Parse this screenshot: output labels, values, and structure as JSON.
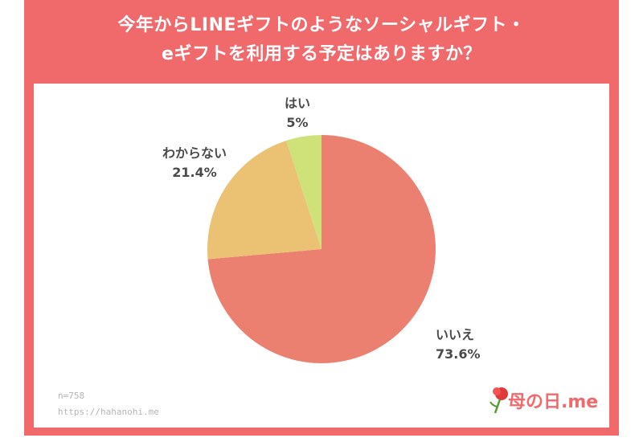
{
  "title_line1": "今年からLINEギフトのようなソーシャルギフト・",
  "title_line2": "eギフトを利用する予定はありますか？",
  "colors": {
    "frame": "#f06a6c",
    "yes": "#cfe27a",
    "no": "#ec8070",
    "unknown": "#ebc273"
  },
  "footer": {
    "sample": "n=758",
    "url": "https://hahanohi.me"
  },
  "logo": {
    "text": "母の日.me"
  },
  "chart_data": {
    "type": "pie",
    "start": "top",
    "direction": "clockwise",
    "slices": [
      {
        "label": "いいえ",
        "value": 73.6,
        "display": "73.6%",
        "color_key": "no"
      },
      {
        "label": "わからない",
        "value": 21.4,
        "display": "21.4%",
        "color_key": "unknown"
      },
      {
        "label": "はい",
        "value": 5.0,
        "display": "5%",
        "color_key": "yes"
      }
    ]
  }
}
